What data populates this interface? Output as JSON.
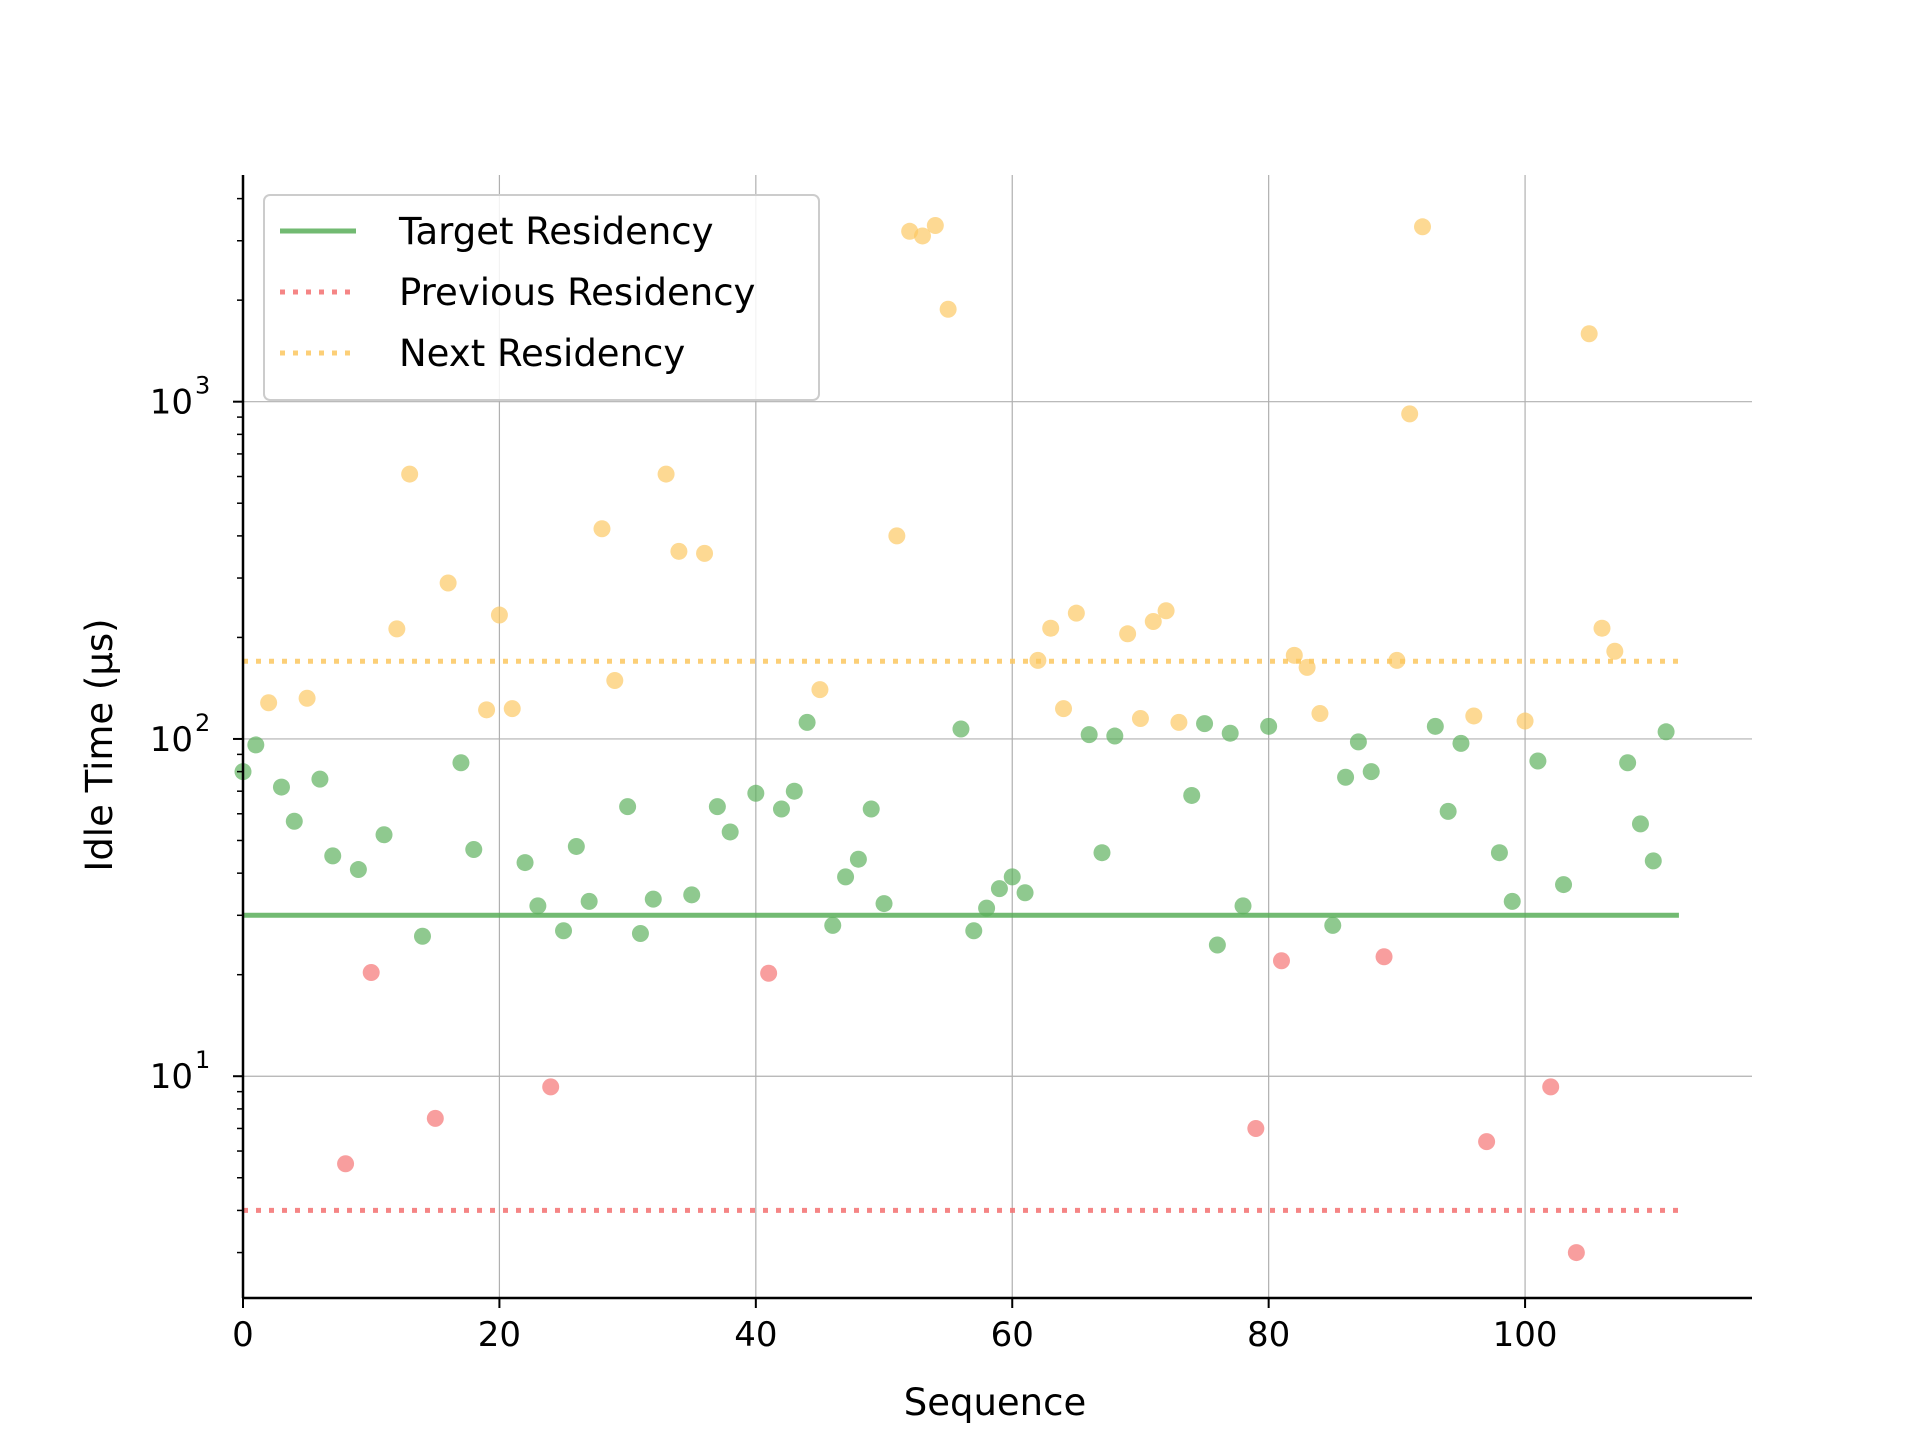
{
  "chart_data": {
    "type": "scatter",
    "xlabel": "Sequence",
    "ylabel": "Idle Time (μs)",
    "xlim": [
      0,
      117.7
    ],
    "ylim": [
      2.2,
      4700
    ],
    "yscale": "log",
    "grid": true,
    "legend_position": "top-left",
    "x_ticks": [
      {
        "value": 0,
        "label": "0"
      },
      {
        "value": 20,
        "label": "20"
      },
      {
        "value": 40,
        "label": "40"
      },
      {
        "value": 60,
        "label": "60"
      },
      {
        "value": 80,
        "label": "80"
      },
      {
        "value": 100,
        "label": "100"
      }
    ],
    "y_ticks": [
      {
        "value": 10,
        "base": "10",
        "exp": "1"
      },
      {
        "value": 100,
        "base": "10",
        "exp": "2"
      },
      {
        "value": 1000,
        "base": "10",
        "exp": "3"
      }
    ],
    "reference_lines": [
      {
        "name": "Target Residency",
        "y": 30,
        "x_range": [
          0,
          112
        ],
        "color": "#5aaf5a",
        "style": "solid"
      },
      {
        "name": "Previous Residency",
        "y": 4,
        "x_range": [
          0,
          112
        ],
        "color": "#f47070",
        "style": "dotted"
      },
      {
        "name": "Next Residency",
        "y": 170,
        "x_range": [
          0,
          112
        ],
        "color": "#fcc760",
        "style": "dotted"
      }
    ],
    "series": [
      {
        "color": "#5aaf5a",
        "points": [
          [
            0,
            80
          ],
          [
            1,
            96
          ],
          [
            3,
            72
          ],
          [
            4,
            57
          ],
          [
            6,
            76
          ],
          [
            7,
            45
          ],
          [
            9,
            41
          ],
          [
            11,
            52
          ],
          [
            14,
            26
          ],
          [
            17,
            85
          ],
          [
            18,
            47
          ],
          [
            22,
            43
          ],
          [
            23,
            32
          ],
          [
            25,
            27
          ],
          [
            26,
            48
          ],
          [
            27,
            33
          ],
          [
            30,
            63
          ],
          [
            31,
            26.5
          ],
          [
            32,
            33.5
          ],
          [
            35,
            34.5
          ],
          [
            37,
            63
          ],
          [
            38,
            53
          ],
          [
            40,
            69
          ],
          [
            42,
            62
          ],
          [
            43,
            70
          ],
          [
            44,
            112
          ],
          [
            46,
            28
          ],
          [
            47,
            39
          ],
          [
            48,
            44
          ],
          [
            49,
            62
          ],
          [
            50,
            32.5
          ],
          [
            56,
            107
          ],
          [
            57,
            27
          ],
          [
            58,
            31.5
          ],
          [
            59,
            36
          ],
          [
            60,
            39
          ],
          [
            61,
            35
          ],
          [
            66,
            103
          ],
          [
            67,
            46
          ],
          [
            68,
            102
          ],
          [
            74,
            68
          ],
          [
            75,
            111
          ],
          [
            76,
            24.5
          ],
          [
            77,
            104
          ],
          [
            78,
            32
          ],
          [
            80,
            109
          ],
          [
            85,
            28
          ],
          [
            86,
            77
          ],
          [
            87,
            98
          ],
          [
            88,
            80
          ],
          [
            93,
            109
          ],
          [
            94,
            61
          ],
          [
            95,
            97
          ],
          [
            98,
            46
          ],
          [
            99,
            33
          ],
          [
            101,
            86
          ],
          [
            103,
            37
          ],
          [
            108,
            85
          ],
          [
            109,
            56
          ],
          [
            110,
            43.5
          ],
          [
            111,
            105
          ]
        ]
      },
      {
        "color": "#f47070",
        "points": [
          [
            8,
            5.5
          ],
          [
            10,
            20.3
          ],
          [
            15,
            7.5
          ],
          [
            24,
            9.3
          ],
          [
            41,
            20.2
          ],
          [
            79,
            7
          ],
          [
            81,
            22
          ],
          [
            89,
            22.6
          ],
          [
            97,
            6.4
          ],
          [
            102,
            9.3
          ],
          [
            104,
            3
          ]
        ]
      },
      {
        "color": "#fcc760",
        "points": [
          [
            2,
            128
          ],
          [
            5,
            132
          ],
          [
            12,
            212
          ],
          [
            13,
            610
          ],
          [
            16,
            290
          ],
          [
            19,
            122
          ],
          [
            20,
            233
          ],
          [
            21,
            123
          ],
          [
            28,
            420
          ],
          [
            29,
            149
          ],
          [
            33,
            610
          ],
          [
            34,
            360
          ],
          [
            36,
            355
          ],
          [
            45,
            140
          ],
          [
            51,
            400
          ],
          [
            52,
            3200
          ],
          [
            53,
            3100
          ],
          [
            54,
            3330
          ],
          [
            55,
            1880
          ],
          [
            62,
            171
          ],
          [
            63,
            213
          ],
          [
            64,
            123
          ],
          [
            65,
            236
          ],
          [
            69,
            205
          ],
          [
            70,
            115
          ],
          [
            71,
            223
          ],
          [
            72,
            240
          ],
          [
            73,
            112
          ],
          [
            82,
            177
          ],
          [
            83,
            163
          ],
          [
            84,
            119
          ],
          [
            90,
            171
          ],
          [
            91,
            920
          ],
          [
            92,
            3300
          ],
          [
            96,
            117
          ],
          [
            100,
            113
          ],
          [
            105,
            1590
          ],
          [
            106,
            213
          ],
          [
            107,
            182
          ]
        ]
      }
    ],
    "legend": [
      {
        "label": "Target Residency",
        "color": "#5aaf5a",
        "style": "solid"
      },
      {
        "label": "Previous Residency",
        "color": "#f47070",
        "style": "dotted"
      },
      {
        "label": "Next Residency",
        "color": "#fcc760",
        "style": "dotted"
      }
    ]
  }
}
